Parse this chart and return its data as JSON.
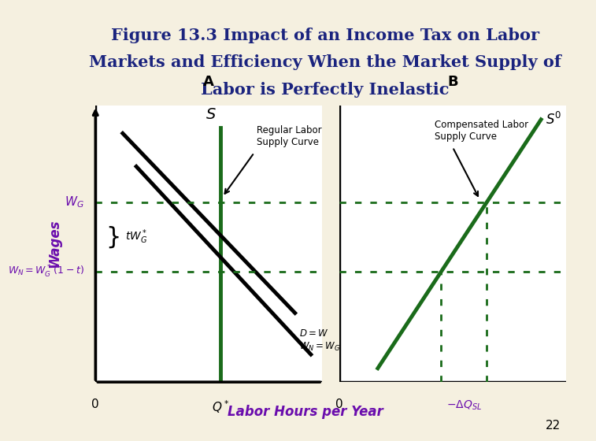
{
  "title_line1": "Figure 13.3 Impact of an Income Tax on Labor",
  "title_line2": "Markets and Efficiency When the Market Supply of",
  "title_line3": "Labor is Perfectly Inelastic",
  "title_color": "#1a237e",
  "title_fontsize": 15,
  "bg_color": "#f5f0e0",
  "left_panel_label": "A",
  "right_panel_label": "B",
  "xlabel": "Labor Hours per Year",
  "ylabel_left": "Wages",
  "ylabel_color": "#6a0dad",
  "panel_bg": "#ffffff",
  "green_color": "#1a6b1a",
  "dotted_color": "#1a6b1a",
  "wG_label": "$W_G$",
  "wN_label": "$W_N = W_G^*\\,(1-t)$",
  "tWG_label": "$tW_G^*$",
  "Qstar_label": "$Q^*$",
  "DW_label": "$D = W$\n$W_N = W_G\\,(1-t)$",
  "S_label": "$S$",
  "Sprime_label": "$S'$",
  "regular_supply_label": "Regular Labor\nSupply Curve",
  "compensated_supply_label": "Compensated Labor\nSupply Curve",
  "deltaQ_label": "$-\\Delta Q_{SL}$",
  "panel_note": "22",
  "wG": 0.65,
  "wN": 0.4,
  "Qstar_A": 0.55,
  "Qstar_B1": 0.45,
  "Qstar_B2": 0.65
}
